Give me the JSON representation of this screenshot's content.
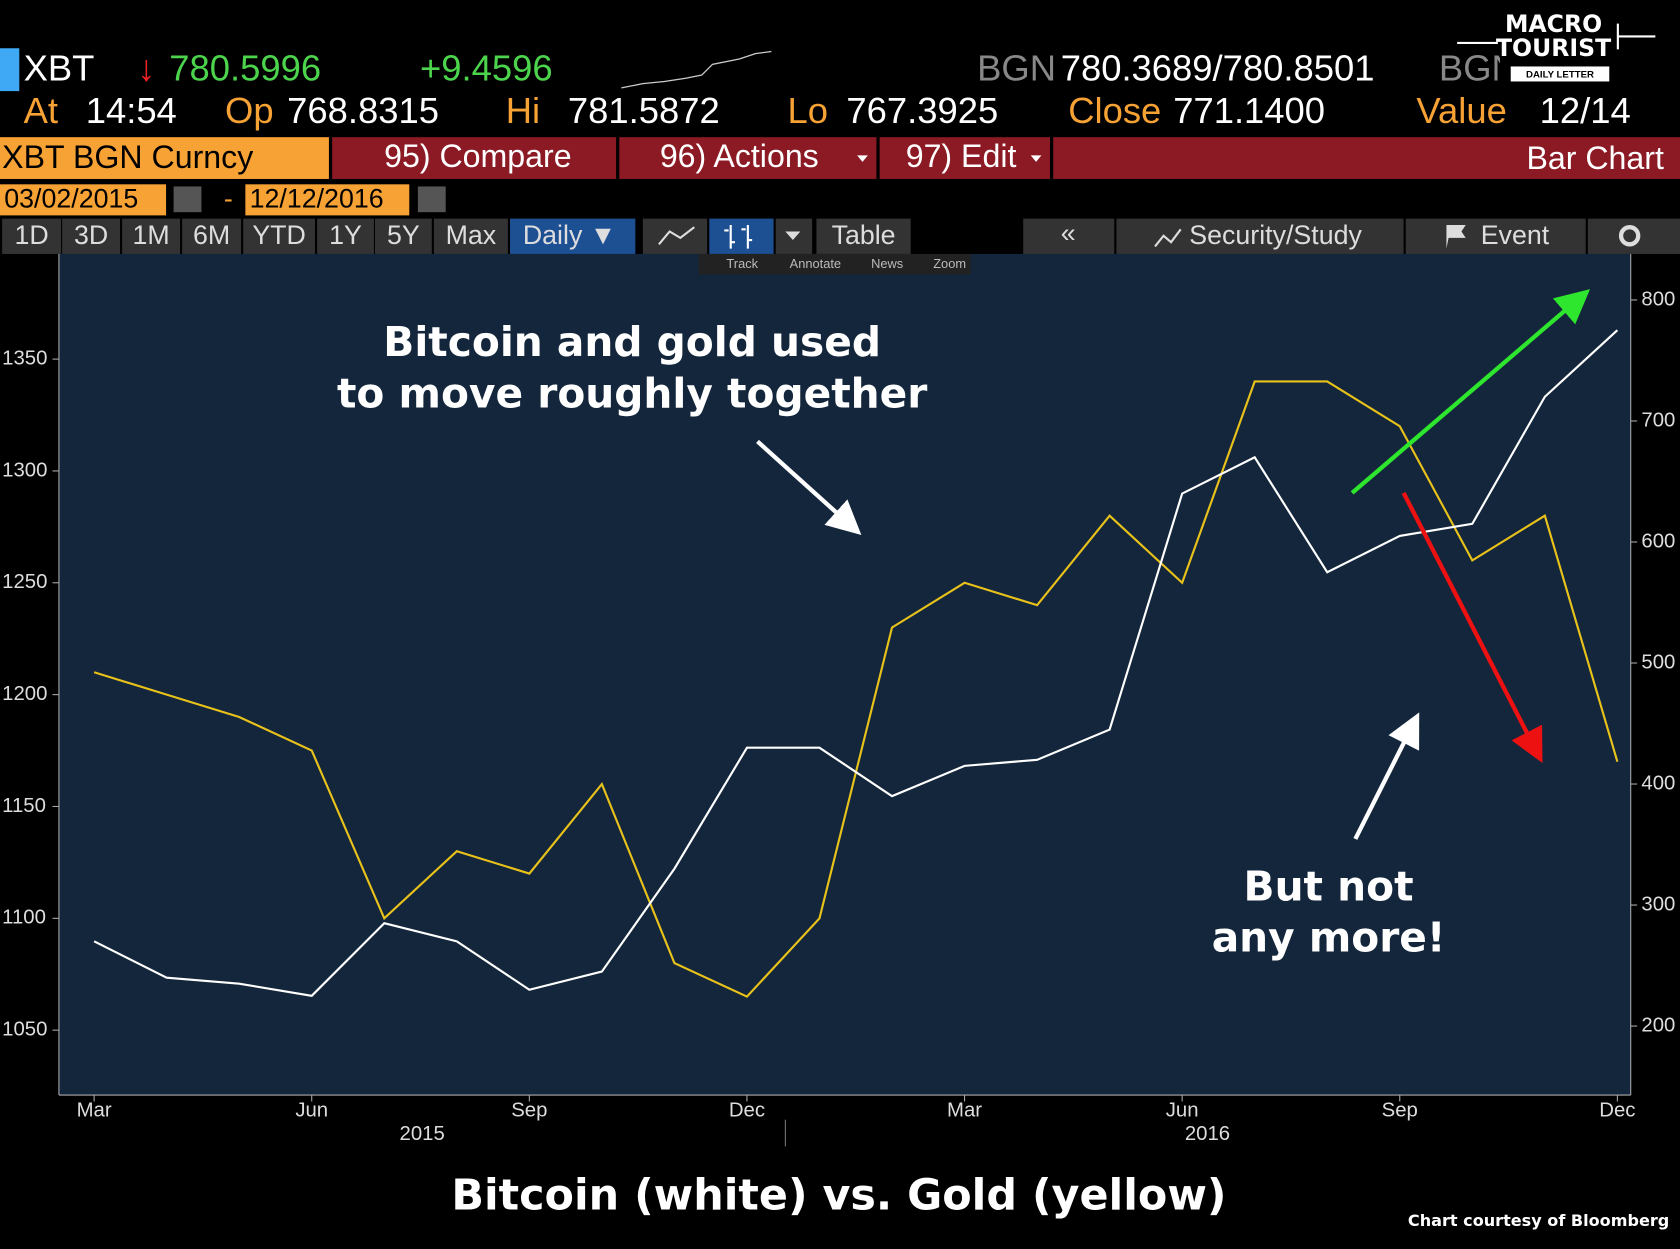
{
  "header": {
    "ticker": "XBT",
    "direction": "↓",
    "last": "780.5996",
    "change": "+9.4596",
    "source": "BGN",
    "bid_ask": "780.3689/780.8501",
    "source2": "BGN",
    "stats": [
      {
        "label": "At",
        "value": "14:54"
      },
      {
        "label": "Op",
        "value": "768.8315"
      },
      {
        "label": "Hi",
        "value": "781.5872"
      },
      {
        "label": "Lo",
        "value": "767.3925"
      },
      {
        "label": "Close",
        "value": "771.1400"
      },
      {
        "label": "Value",
        "value": "12/14"
      }
    ],
    "logo": {
      "line1": "MACRO",
      "line2": "TOURIST",
      "line3": "DAILY LETTER"
    }
  },
  "toolbar": {
    "security": "XBT BGN Curncy",
    "buttons": [
      "95) Compare",
      "96) Actions",
      "97) Edit"
    ],
    "view": "Bar Chart",
    "start_date": "03/02/2015",
    "separator": "-",
    "end_date": "12/12/2016",
    "periods": [
      "1D",
      "3D",
      "1M",
      "6M",
      "YTD",
      "1Y",
      "5Y",
      "Max"
    ],
    "frequency": "Daily ▼",
    "table": "Table",
    "back": "«",
    "study": "Security/Study",
    "event": "Event",
    "mini": [
      "Track",
      "Annotate",
      "News",
      "Zoom"
    ]
  },
  "chart_data": {
    "type": "line",
    "title": "Bitcoin (white) vs. Gold (yellow)",
    "credit": "Chart courtesy of Bloomberg",
    "x": [
      "2015-03",
      "2015-04",
      "2015-05",
      "2015-06",
      "2015-07",
      "2015-08",
      "2015-09",
      "2015-10",
      "2015-11",
      "2015-12",
      "2016-01",
      "2016-02",
      "2016-03",
      "2016-04",
      "2016-05",
      "2016-06",
      "2016-07",
      "2016-08",
      "2016-09",
      "2016-10",
      "2016-11",
      "2016-12"
    ],
    "xlim": [
      "2015-03",
      "2016-12"
    ],
    "xticks": [
      {
        "value": "2015-03",
        "label": "Mar"
      },
      {
        "value": "2015-06",
        "label": "Jun"
      },
      {
        "value": "2015-09",
        "label": "Sep"
      },
      {
        "value": "2015-12",
        "label": "Dec"
      },
      {
        "value": "2016-03",
        "label": "Mar"
      },
      {
        "value": "2016-06",
        "label": "Jun"
      },
      {
        "value": "2016-09",
        "label": "Sep"
      },
      {
        "value": "2016-12",
        "label": "Dec"
      }
    ],
    "years": [
      "2015",
      "2016"
    ],
    "ylim": [
      1021,
      1397
    ],
    "yticks": [
      1050,
      1100,
      1150,
      1200,
      1250,
      1300,
      1350
    ],
    "y2lim": [
      143,
      838
    ],
    "y2ticks": [
      200,
      300,
      400,
      500,
      600,
      700,
      800
    ],
    "series": [
      {
        "name": "Gold",
        "color": "#e8c21b",
        "axis": "y",
        "values": [
          1210,
          1200,
          1190,
          1175,
          1100,
          1130,
          1120,
          1160,
          1080,
          1065,
          1100,
          1230,
          1250,
          1240,
          1280,
          1250,
          1340,
          1340,
          1320,
          1260,
          1280,
          1170
        ]
      },
      {
        "name": "Bitcoin",
        "color": "#ffffff",
        "axis": "y2",
        "values": [
          270,
          240,
          235,
          225,
          285,
          270,
          230,
          245,
          330,
          430,
          430,
          390,
          415,
          420,
          445,
          640,
          670,
          575,
          605,
          615,
          720,
          775
        ]
      }
    ],
    "annotations": [
      {
        "lines": [
          "Bitcoin and gold used",
          "to move roughly together"
        ]
      },
      {
        "lines": [
          "But not",
          "any more!"
        ]
      }
    ]
  }
}
